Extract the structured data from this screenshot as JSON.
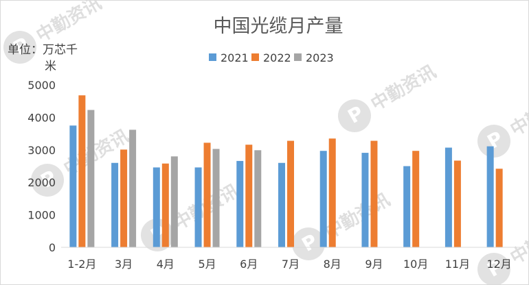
{
  "chart_data": {
    "type": "bar",
    "title": "中国光缆月产量",
    "ylabel_line1": "单位：万芯千",
    "ylabel_line2": "米",
    "ylim": [
      0,
      5000
    ],
    "yticks": [
      0,
      1000,
      2000,
      3000,
      4000,
      5000
    ],
    "grid": false,
    "legend_position": "top",
    "categories": [
      "1-2月",
      "3月",
      "4月",
      "5月",
      "6月",
      "7月",
      "8月",
      "9月",
      "10月",
      "11月",
      "12月"
    ],
    "series": [
      {
        "name": "2021",
        "color": "#5b9bd5",
        "values": [
          3750,
          2600,
          2460,
          2460,
          2660,
          2600,
          2970,
          2910,
          2500,
          3070,
          3110
        ]
      },
      {
        "name": "2022",
        "color": "#ed7d31",
        "values": [
          4680,
          3010,
          2580,
          3220,
          3160,
          3280,
          3350,
          3280,
          2970,
          2670,
          2420
        ]
      },
      {
        "name": "2023",
        "color": "#a5a5a5",
        "values": [
          4230,
          3620,
          2800,
          3030,
          2990,
          null,
          null,
          null,
          null,
          null,
          null
        ]
      }
    ]
  },
  "watermark": {
    "text": "中勤资讯",
    "color": "#c0c0c0"
  }
}
